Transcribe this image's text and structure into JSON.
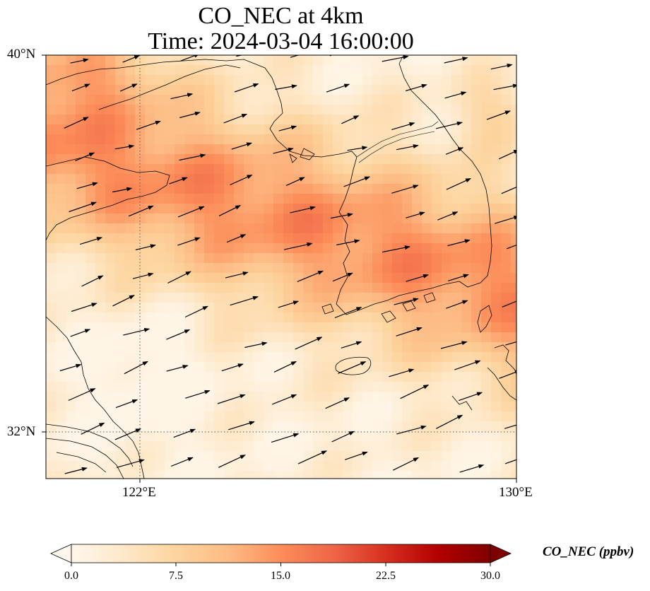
{
  "title": {
    "line1": "CO_NEC at 4km",
    "line2": "Time: 2024-03-04 16:00:00"
  },
  "axes": {
    "lat_labels": [
      "40°N",
      "32°N"
    ],
    "lon_labels": [
      "122°E",
      "130°E"
    ],
    "lon_range": [
      120,
      130
    ],
    "lat_range": [
      31,
      40
    ],
    "gridlines": {
      "lon": 122,
      "lat": 32,
      "style": "dotted"
    }
  },
  "colorbar": {
    "title": "CO_NEC (ppbv)",
    "ticks": [
      "0.0",
      "7.5",
      "15.0",
      "22.5",
      "30.0"
    ],
    "range": [
      0,
      30
    ],
    "colormap": "OrRd",
    "colors": [
      "#fff7ec",
      "#fee8c8",
      "#fdd49e",
      "#fdbb84",
      "#fc8d59",
      "#ef6548",
      "#d7301f",
      "#b30000",
      "#7f0000"
    ],
    "extend": "both"
  },
  "map": {
    "field_description_levels_ppbv": {
      "north_band": 14,
      "central": 8,
      "south": 3
    },
    "wind_direction": "westerly to west-southwesterly",
    "features": [
      "coastlines",
      "Korean Peninsula",
      "Shandong Peninsula",
      "Jeju Island",
      "Yangtze estuary"
    ]
  }
}
